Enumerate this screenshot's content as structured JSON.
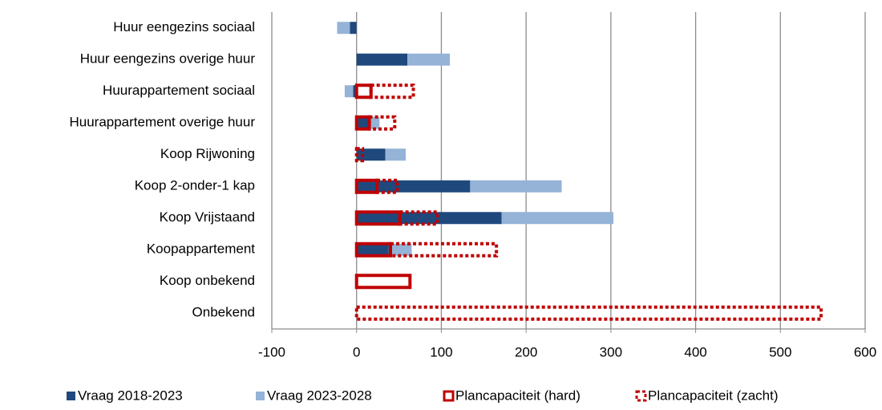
{
  "chart_data": {
    "type": "stacked-bar-horizontal",
    "categories": [
      "Huur eengezins sociaal",
      "Huur eengezins overige huur",
      "Huurappartement sociaal",
      "Huurappartement overige huur",
      "Koop Rijwoning",
      "Koop 2-onder-1 kap",
      "Koop Vrijstaand",
      "Koopappartement",
      "Koop onbekend",
      "Onbekend"
    ],
    "series": [
      {
        "name": "Vraag 2018-2023",
        "color": "#1f497d",
        "style": "fill",
        "stack": "vraag",
        "values": [
          -8,
          60,
          -4,
          16,
          34,
          134,
          171,
          38,
          null,
          null
        ]
      },
      {
        "name": "Vraag 2023-2028",
        "color": "#95b3d7",
        "style": "fill",
        "stack": "vraag",
        "values": [
          -15,
          50,
          -10,
          11,
          24,
          108,
          132,
          27,
          null,
          null
        ]
      },
      {
        "name": "Plancapaciteit (hard)",
        "color": "#c00000",
        "style": "outline",
        "stack": "plan",
        "values": [
          null,
          null,
          17,
          15,
          0,
          24,
          51,
          40,
          63,
          null
        ]
      },
      {
        "name": "Plancapaciteit (zacht)",
        "color": "#c00000",
        "style": "dotted",
        "stack": "plan",
        "values": [
          null,
          null,
          50,
          30,
          7,
          24,
          44,
          125,
          null,
          548
        ]
      }
    ],
    "xlim": [
      -100,
      600
    ],
    "xticks": [
      -100,
      0,
      100,
      200,
      300,
      400,
      500,
      600
    ],
    "grid": true
  }
}
